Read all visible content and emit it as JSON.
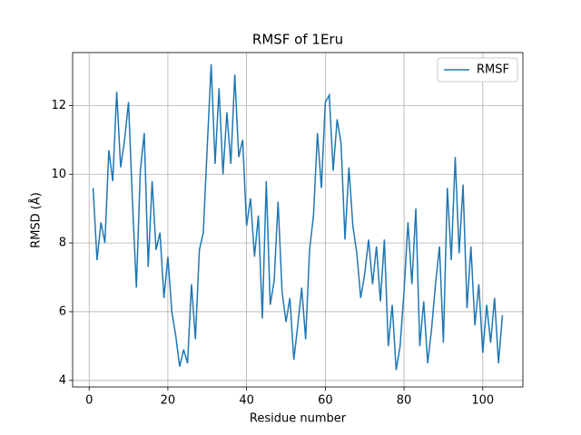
{
  "chart_data": {
    "type": "line",
    "title": "RMSF of 1Eru",
    "xlabel": "Residue number",
    "ylabel": "RMSD (Å)",
    "x": [
      1,
      2,
      3,
      4,
      5,
      6,
      7,
      8,
      9,
      10,
      11,
      12,
      13,
      14,
      15,
      16,
      17,
      18,
      19,
      20,
      21,
      22,
      23,
      24,
      25,
      26,
      27,
      28,
      29,
      30,
      31,
      32,
      33,
      34,
      35,
      36,
      37,
      38,
      39,
      40,
      41,
      42,
      43,
      44,
      45,
      46,
      47,
      48,
      49,
      50,
      51,
      52,
      53,
      54,
      55,
      56,
      57,
      58,
      59,
      60,
      61,
      62,
      63,
      64,
      65,
      66,
      67,
      68,
      69,
      70,
      71,
      72,
      73,
      74,
      75,
      76,
      77,
      78,
      79,
      80,
      81,
      82,
      83,
      84,
      85,
      86,
      87,
      88,
      89,
      90,
      91,
      92,
      93,
      94,
      95,
      96,
      97,
      98,
      99,
      100,
      101,
      102,
      103,
      104,
      105
    ],
    "series": [
      {
        "name": "RMSF",
        "color": "#1f77b4",
        "values": [
          9.6,
          7.5,
          8.6,
          8.0,
          10.7,
          9.8,
          12.4,
          10.2,
          11.0,
          12.1,
          9.2,
          6.7,
          10.1,
          11.2,
          7.3,
          9.8,
          7.8,
          8.3,
          6.4,
          7.6,
          6.0,
          5.3,
          4.4,
          4.9,
          4.5,
          6.8,
          5.2,
          7.8,
          8.3,
          10.8,
          13.2,
          10.3,
          12.5,
          10.0,
          11.8,
          10.3,
          12.9,
          10.5,
          11.0,
          8.5,
          9.3,
          7.6,
          8.8,
          5.8,
          9.8,
          6.2,
          6.9,
          9.2,
          6.6,
          5.7,
          6.4,
          4.6,
          5.6,
          6.7,
          5.2,
          7.8,
          8.8,
          11.2,
          9.6,
          12.1,
          12.3,
          10.1,
          11.6,
          10.9,
          8.1,
          10.2,
          8.5,
          7.7,
          6.4,
          7.1,
          8.1,
          6.8,
          7.9,
          6.3,
          8.1,
          5.0,
          6.2,
          4.3,
          5.0,
          6.6,
          8.6,
          6.8,
          9.0,
          5.0,
          6.3,
          4.5,
          5.5,
          6.8,
          7.9,
          5.1,
          9.6,
          7.5,
          10.5,
          7.7,
          9.7,
          6.1,
          7.9,
          5.6,
          6.8,
          4.8,
          6.2,
          5.1,
          6.4,
          4.5,
          5.9
        ]
      }
    ],
    "xlim": [
      -4.2,
      110.2
    ],
    "ylim": [
      3.81,
      13.54
    ],
    "xticks": [
      0,
      20,
      40,
      60,
      80,
      100
    ],
    "yticks": [
      4,
      6,
      8,
      10,
      12
    ],
    "grid": true,
    "legend": "upper right"
  }
}
